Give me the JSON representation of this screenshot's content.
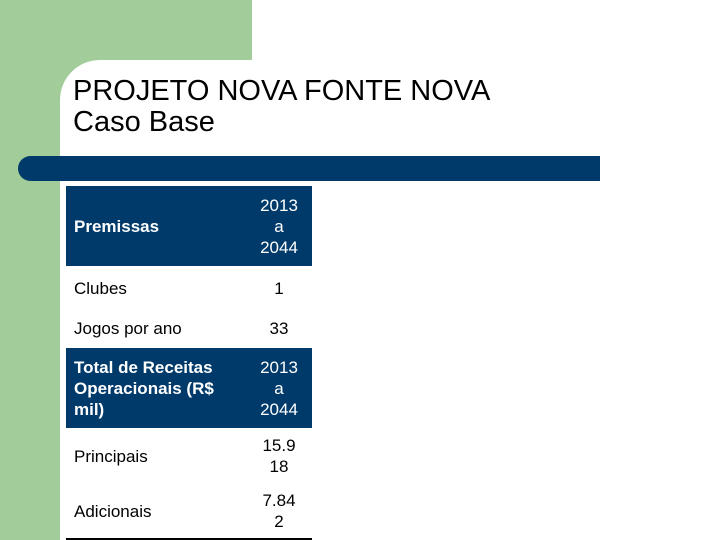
{
  "title": {
    "line1": "PROJETO NOVA FONTE NOVA",
    "line2": "Caso Base"
  },
  "colors": {
    "accent_green": "#a2cd9a",
    "navy": "#003a6b"
  },
  "table": {
    "premissas_header": {
      "label": "Premissas",
      "value": "2013\na\n2044"
    },
    "rows1": [
      {
        "label": "Clubes",
        "value": "1"
      },
      {
        "label": "Jogos por ano",
        "value": "33"
      }
    ],
    "receitas_header": {
      "label": "Total de Receitas\nOperacionais (R$\nmil)",
      "value": "2013\na\n2044"
    },
    "rows2": [
      {
        "label": "Principais",
        "value": "15.9\n18"
      },
      {
        "label": "Adicionais",
        "value": "7.84\n2"
      }
    ]
  }
}
